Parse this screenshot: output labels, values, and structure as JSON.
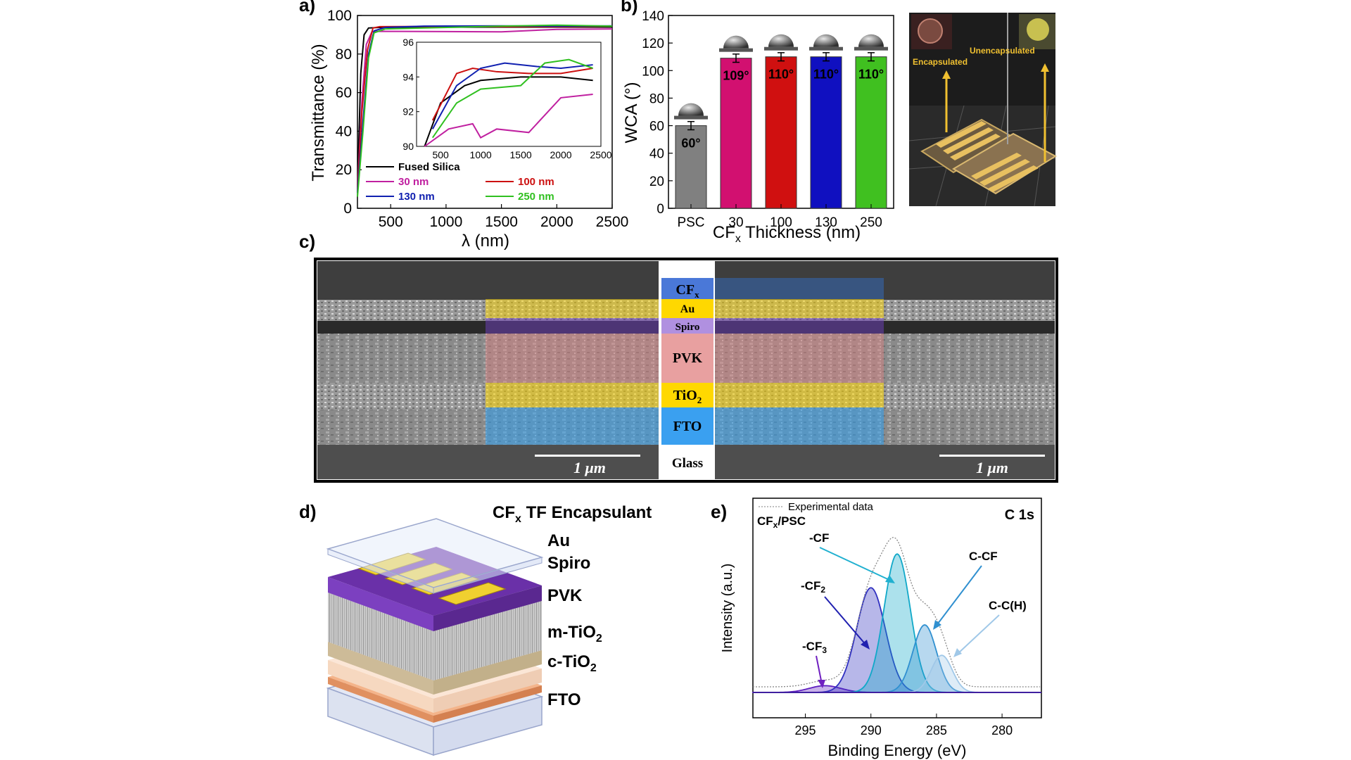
{
  "panels": {
    "a": "a)",
    "b": "b)",
    "c": "c)",
    "d": "d)",
    "e": "e)"
  },
  "chart_data": [
    {
      "id": "a",
      "type": "line",
      "title": "",
      "xlabel": "λ (nm)",
      "ylabel": "Transmittance (%)",
      "xlim": [
        200,
        2500
      ],
      "ylim": [
        0,
        100
      ],
      "xticks": [
        500,
        1000,
        1500,
        2000,
        2500
      ],
      "yticks": [
        0,
        20,
        40,
        60,
        80,
        100
      ],
      "legend": "bottom-center",
      "series": [
        {
          "name": "Fused Silica",
          "color": "#000000",
          "x": [
            200,
            230,
            260,
            300,
            400,
            800,
            1500,
            2000,
            2500
          ],
          "y": [
            10,
            70,
            90,
            93.5,
            93.8,
            93.9,
            94,
            94,
            94
          ]
        },
        {
          "name": "30 nm",
          "color": "#c020a0",
          "x": [
            200,
            240,
            280,
            330,
            400,
            800,
            1500,
            2000,
            2500
          ],
          "y": [
            10,
            55,
            85,
            91.5,
            91.8,
            91.7,
            91.5,
            92.8,
            93
          ]
        },
        {
          "name": "100 nm",
          "color": "#cc1010",
          "x": [
            200,
            240,
            290,
            340,
            400,
            800,
            1500,
            2000,
            2500
          ],
          "y": [
            8,
            50,
            82,
            93.5,
            94.2,
            94.3,
            94.2,
            94.2,
            94.5
          ]
        },
        {
          "name": "130 nm",
          "color": "#1020b0",
          "x": [
            200,
            250,
            300,
            350,
            450,
            800,
            1500,
            2000,
            2500
          ],
          "y": [
            8,
            45,
            80,
            92,
            93.8,
            94.5,
            94.6,
            94.5,
            94.6
          ]
        },
        {
          "name": "250 nm",
          "color": "#30c020",
          "x": [
            200,
            250,
            300,
            350,
            450,
            800,
            1500,
            2000,
            2500
          ],
          "y": [
            6,
            40,
            78,
            91,
            93,
            93.5,
            94.5,
            95,
            94.5
          ]
        }
      ],
      "inset": {
        "xlim": [
          200,
          2500
        ],
        "ylim": [
          90,
          96
        ],
        "xticks": [
          500,
          1000,
          1500,
          2000,
          2500
        ],
        "yticks": [
          90,
          92,
          94,
          96
        ],
        "series": [
          {
            "name": "Fused Silica",
            "x": [
              300,
              500,
              800,
              1000,
              1500,
              2000,
              2400
            ],
            "y": [
              90,
              92.5,
              93.5,
              93.8,
              94,
              94,
              93.8
            ]
          },
          {
            "name": "30 nm",
            "x": [
              300,
              600,
              900,
              1000,
              1200,
              1600,
              2000,
              2400
            ],
            "y": [
              90,
              91,
              91.3,
              90.5,
              91,
              90.8,
              92.8,
              93
            ]
          },
          {
            "name": "100 nm",
            "x": [
              400,
              700,
              900,
              1200,
              1600,
              2000,
              2400
            ],
            "y": [
              91.5,
              94.2,
              94.5,
              94.3,
              94.2,
              94.2,
              94.5
            ]
          },
          {
            "name": "130 nm",
            "x": [
              400,
              700,
              1000,
              1300,
              1700,
              2000,
              2400
            ],
            "y": [
              91,
              93.5,
              94.5,
              94.8,
              94.6,
              94.5,
              94.7
            ]
          },
          {
            "name": "250 nm",
            "x": [
              400,
              700,
              1000,
              1500,
              1800,
              2100,
              2400
            ],
            "y": [
              90.5,
              92.5,
              93.3,
              93.5,
              94.8,
              95,
              94.5
            ]
          }
        ]
      }
    },
    {
      "id": "b",
      "type": "bar",
      "title": "",
      "xlabel": "CFx Thickness (nm)",
      "ylabel": "WCA (°)",
      "ylim": [
        0,
        140
      ],
      "yticks": [
        0,
        20,
        40,
        60,
        80,
        100,
        120,
        140
      ],
      "categories": [
        "PSC",
        "30",
        "100",
        "130",
        "250"
      ],
      "values": [
        60,
        109,
        110,
        110,
        110
      ],
      "errors": [
        3,
        3,
        3,
        3,
        3
      ],
      "colors": [
        "#808080",
        "#d21070",
        "#d01010",
        "#1010c0",
        "#40c020"
      ],
      "bar_labels": [
        "60°",
        "109°",
        "110°",
        "110°",
        "110°"
      ]
    },
    {
      "id": "e",
      "type": "line",
      "title": "C 1s",
      "sample": "CFx/PSC",
      "xlabel": "Binding Energy (eV)",
      "ylabel": "Intensity (a.u.)",
      "xlim": [
        299,
        277
      ],
      "xticks": [
        295,
        290,
        285,
        280
      ],
      "legend": "Experimental data",
      "peaks": [
        {
          "name": "-CF3",
          "center": 293.5,
          "height": 0.04,
          "width": 1.2,
          "color": "#6020c0"
        },
        {
          "name": "-CF2",
          "center": 290.0,
          "height": 0.62,
          "width": 1.1,
          "color": "#3030c0"
        },
        {
          "name": "-CF",
          "center": 288.0,
          "height": 0.82,
          "width": 1.0,
          "color": "#10a8c8"
        },
        {
          "name": "C-CF",
          "center": 285.9,
          "height": 0.4,
          "width": 0.9,
          "color": "#3090d0"
        },
        {
          "name": "C-C(H)",
          "center": 284.6,
          "height": 0.22,
          "width": 0.8,
          "color": "#a0c8e8"
        }
      ]
    }
  ],
  "photo_b": {
    "encapsulated": "Encapsulated",
    "unencapsulated": "Unencapsulated"
  },
  "panel_c": {
    "layers": [
      "CF",
      "Au",
      "Spiro",
      "PVK",
      "TiO",
      "FTO",
      "Glass"
    ],
    "sub_x": "x",
    "sub_2": "2",
    "scale_left": "1 μm",
    "scale_right": "1 μm"
  },
  "panel_d": {
    "title_pre": "CF",
    "title_sub": "x",
    "title_post": " TF Encapsulant",
    "layers": [
      "Au",
      "Spiro",
      "PVK",
      "m-TiO",
      "c-TiO",
      "FTO"
    ],
    "sub_2": "2"
  },
  "panel_e_labels": {
    "cf": "-CF",
    "cf2": "-CF",
    "cf3": "-CF",
    "ccf": "C-CF",
    "cch": "C-C(H)",
    "sub2": "2",
    "sub3": "3",
    "sample_pre": "CF",
    "sample_sub": "x",
    "sample_post": "/PSC"
  }
}
